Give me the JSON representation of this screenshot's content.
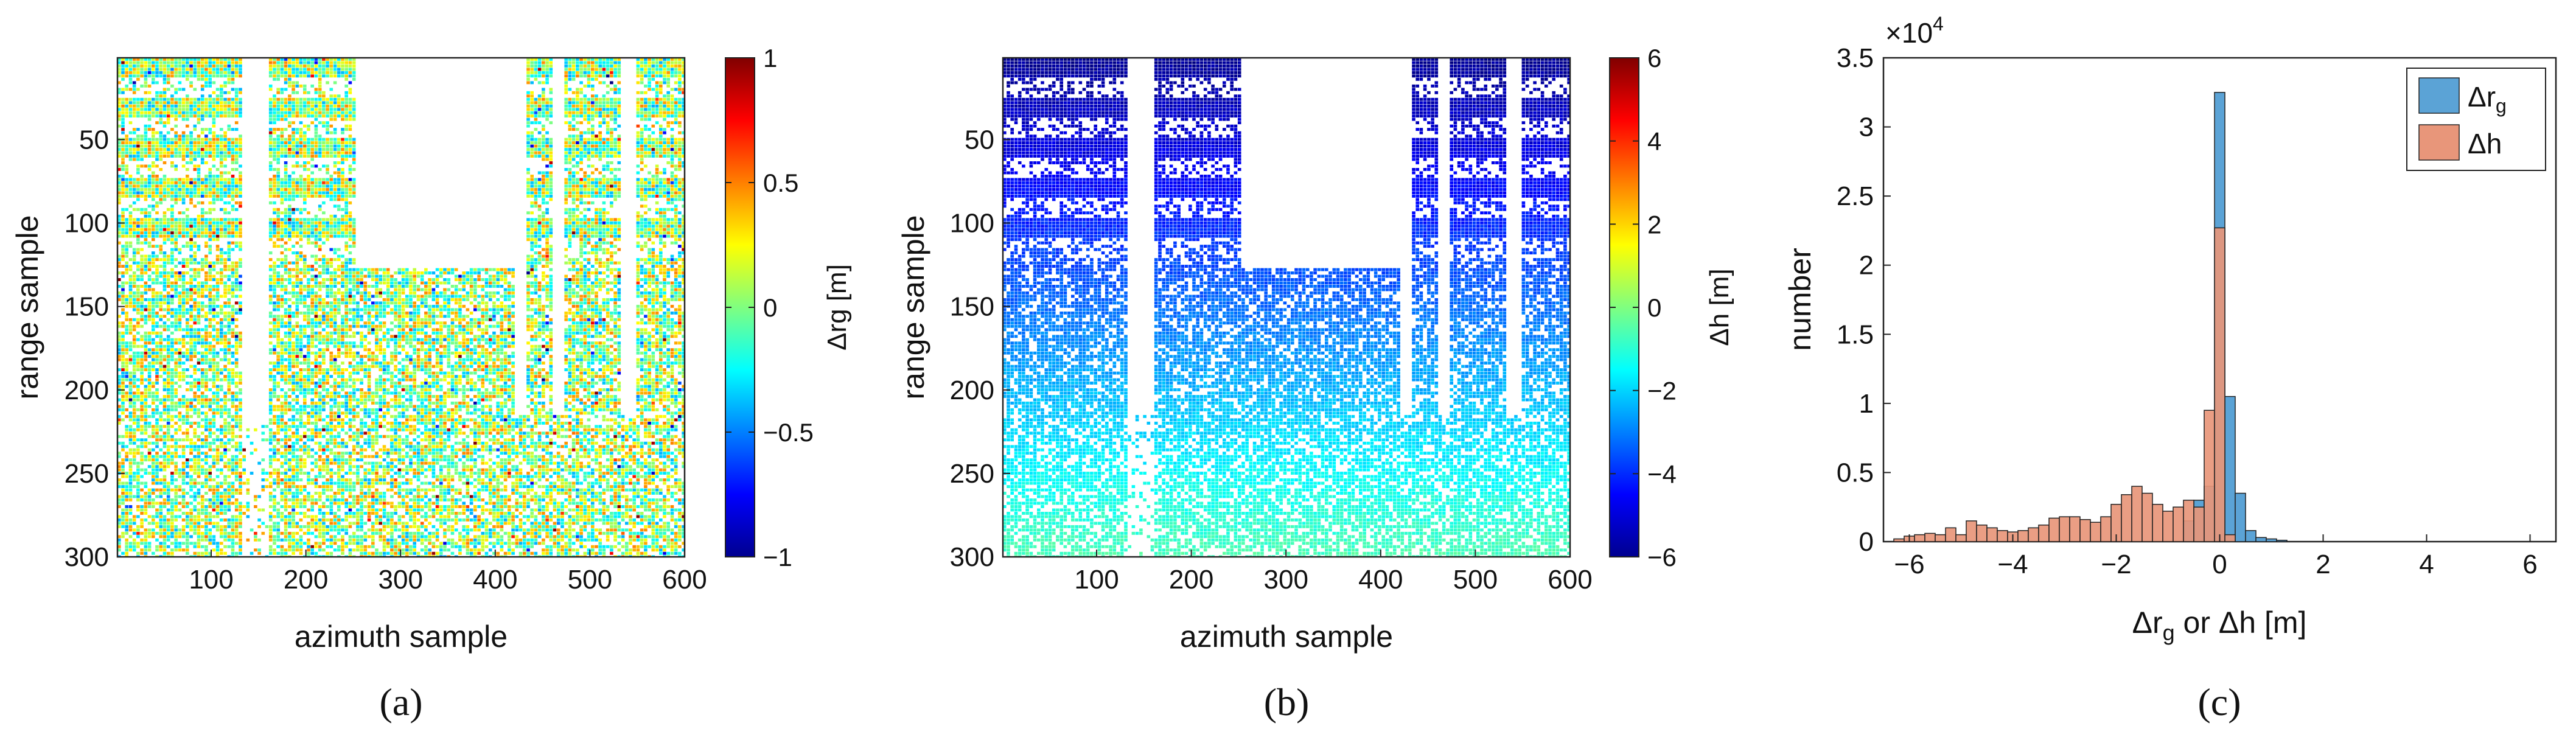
{
  "chart_data": [
    {
      "panel": "a",
      "type": "heatmap",
      "caption": "(a)",
      "xlabel": "azimuth sample",
      "ylabel": "range sample",
      "xlim": [
        1,
        600
      ],
      "ylim": [
        1,
        300
      ],
      "y_reversed": true,
      "x_ticks": [
        "100",
        "200",
        "300",
        "400",
        "500",
        "600"
      ],
      "y_ticks": [
        "50",
        "100",
        "150",
        "200",
        "250",
        "300"
      ],
      "colorbar": {
        "label": "Δrg [m]",
        "range": [
          -1,
          1
        ],
        "ticks": [
          "1",
          "0.5",
          "0",
          "−0.5",
          "−1"
        ],
        "colormap": "jet"
      },
      "description_values": {
        "dominant_value_range": [
          -0.3,
          0.4
        ],
        "no_data_regions": "white gaps between building columns and top-center area"
      }
    },
    {
      "panel": "b",
      "type": "heatmap",
      "caption": "(b)",
      "xlabel": "azimuth sample",
      "ylabel": "range sample",
      "xlim": [
        1,
        600
      ],
      "ylim": [
        1,
        300
      ],
      "y_reversed": true,
      "x_ticks": [
        "100",
        "200",
        "300",
        "400",
        "500",
        "600"
      ],
      "y_ticks": [
        "50",
        "100",
        "150",
        "200",
        "250",
        "300"
      ],
      "colorbar": {
        "label": "Δh [m]",
        "range": [
          -6,
          6
        ],
        "ticks": [
          "6",
          "4",
          "2",
          "0",
          "−2",
          "−4",
          "−6"
        ],
        "colormap": "jet"
      },
      "description_values": {
        "value_at_top_rows": -6,
        "value_at_bottom_rows": -0.5
      }
    },
    {
      "panel": "c",
      "type": "bar",
      "subtype": "histogram",
      "caption": "(c)",
      "xlabel": "Δr_g or Δh [m]",
      "ylabel": "number",
      "exponent_label": "×10^4",
      "xlim": [
        -6.5,
        6.5
      ],
      "ylim": [
        0,
        3.5
      ],
      "y_scale": 10000,
      "bin_width": 0.2,
      "x_ticks": [
        "−6",
        "−4",
        "−2",
        "0",
        "2",
        "4",
        "6"
      ],
      "y_ticks": [
        "0",
        "0.5",
        "1",
        "1.5",
        "2",
        "2.5",
        "3",
        "3.5"
      ],
      "legend_position": "top-right",
      "series": [
        {
          "name": "Δr_g",
          "color": "#5ba3d6",
          "bins": [
            {
              "x": -0.6,
              "value": 0.15
            },
            {
              "x": -0.4,
              "value": 0.3
            },
            {
              "x": -0.2,
              "value": 0.4
            },
            {
              "x": 0.0,
              "value": 3.25
            },
            {
              "x": 0.2,
              "value": 1.05
            },
            {
              "x": 0.4,
              "value": 0.35
            },
            {
              "x": 0.6,
              "value": 0.08
            },
            {
              "x": 0.8,
              "value": 0.03
            },
            {
              "x": 1.0,
              "value": 0.02
            },
            {
              "x": 1.2,
              "value": 0.01
            }
          ]
        },
        {
          "name": "Δh",
          "color": "#e8967a",
          "bins": [
            {
              "x": -6.2,
              "value": 0.02
            },
            {
              "x": -6.0,
              "value": 0.04
            },
            {
              "x": -5.8,
              "value": 0.05
            },
            {
              "x": -5.6,
              "value": 0.06
            },
            {
              "x": -5.4,
              "value": 0.05
            },
            {
              "x": -5.2,
              "value": 0.1
            },
            {
              "x": -5.0,
              "value": 0.05
            },
            {
              "x": -4.8,
              "value": 0.15
            },
            {
              "x": -4.6,
              "value": 0.12
            },
            {
              "x": -4.4,
              "value": 0.1
            },
            {
              "x": -4.2,
              "value": 0.08
            },
            {
              "x": -4.0,
              "value": 0.07
            },
            {
              "x": -3.8,
              "value": 0.08
            },
            {
              "x": -3.6,
              "value": 0.1
            },
            {
              "x": -3.4,
              "value": 0.12
            },
            {
              "x": -3.2,
              "value": 0.17
            },
            {
              "x": -3.0,
              "value": 0.18
            },
            {
              "x": -2.8,
              "value": 0.18
            },
            {
              "x": -2.6,
              "value": 0.16
            },
            {
              "x": -2.4,
              "value": 0.14
            },
            {
              "x": -2.2,
              "value": 0.18
            },
            {
              "x": -2.0,
              "value": 0.27
            },
            {
              "x": -1.8,
              "value": 0.34
            },
            {
              "x": -1.6,
              "value": 0.4
            },
            {
              "x": -1.4,
              "value": 0.35
            },
            {
              "x": -1.2,
              "value": 0.27
            },
            {
              "x": -1.0,
              "value": 0.22
            },
            {
              "x": -0.8,
              "value": 0.25
            },
            {
              "x": -0.6,
              "value": 0.3
            },
            {
              "x": -0.4,
              "value": 0.25
            },
            {
              "x": -0.2,
              "value": 0.95
            },
            {
              "x": 0.0,
              "value": 2.27
            },
            {
              "x": 0.2,
              "value": 0.05
            }
          ]
        }
      ]
    }
  ]
}
